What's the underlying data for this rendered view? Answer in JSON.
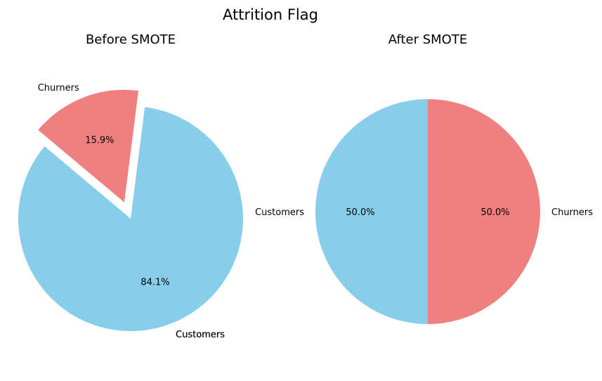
{
  "figure": {
    "title": "Attrition Flag"
  },
  "chart_data": [
    {
      "type": "pie",
      "title": "Before SMOTE",
      "categories": [
        "Customers",
        "Churners"
      ],
      "values": [
        84.1,
        15.9
      ],
      "value_labels": [
        "84.1%",
        "15.9%"
      ],
      "colors": [
        "#87ceeb",
        "#f08080"
      ],
      "exploded": [
        false,
        true
      ],
      "start_angle_deg": 140,
      "extra_labels": [
        {
          "text": "Customers"
        }
      ]
    },
    {
      "type": "pie",
      "title": "After SMOTE",
      "categories": [
        "Customers",
        "Churners"
      ],
      "values": [
        50.0,
        50.0
      ],
      "value_labels": [
        "50.0%",
        "50.0%"
      ],
      "colors": [
        "#87ceeb",
        "#f08080"
      ],
      "exploded": [
        false,
        false
      ],
      "start_angle_deg": 90
    }
  ]
}
